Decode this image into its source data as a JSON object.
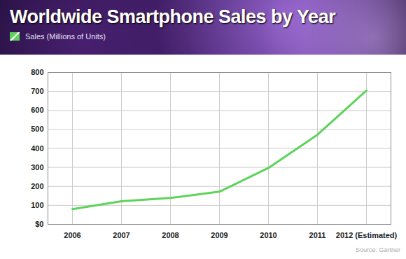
{
  "chart_data": {
    "type": "line",
    "title": "Worldwide Smartphone Sales by Year",
    "categories": [
      "2006",
      "2007",
      "2008",
      "2009",
      "2010",
      "2011",
      "2012 (Estimated)"
    ],
    "series": [
      {
        "name": "Sales (Millions of Units)",
        "color": "#5ed35a",
        "values": [
          80,
          122,
          139,
          172,
          297,
          472,
          705
        ]
      }
    ],
    "ylim": [
      0,
      800
    ],
    "yticks": [
      {
        "value": 0,
        "label": "$0"
      },
      100,
      200,
      300,
      400,
      500,
      600,
      700,
      800
    ],
    "grid": true,
    "legend": "top-left",
    "source": "Source: Gartner"
  }
}
